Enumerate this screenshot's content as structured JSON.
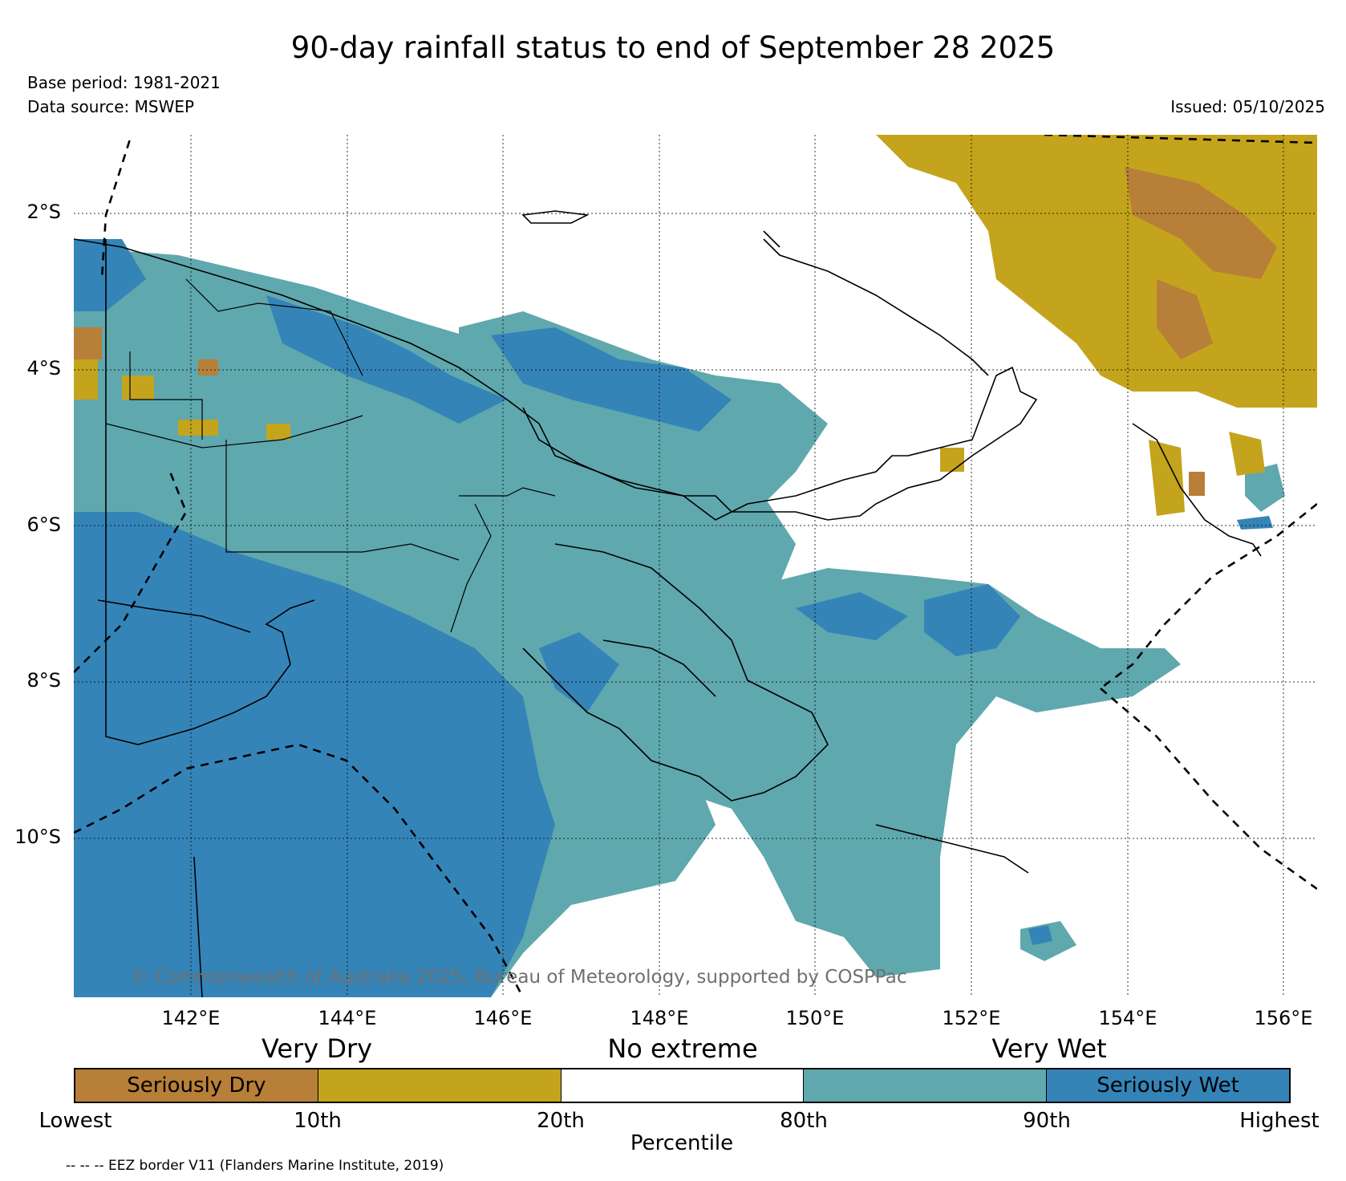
{
  "title": "90-day rainfall status to end of September 28 2025",
  "base_period": "Base period: 1981-2021",
  "data_source": "Data source: MSWEP",
  "issued": "Issued: 05/10/2025",
  "copyright": "© Commonwealth of Australia 2025, Bureau of Meteorology, supported by COSPPac",
  "lat_labels": [
    "2°S",
    "4°S",
    "6°S",
    "8°S",
    "10°S"
  ],
  "lon_labels": [
    "142°E",
    "144°E",
    "146°E",
    "148°E",
    "150°E",
    "152°E",
    "154°E",
    "156°E"
  ],
  "category_labels": {
    "dry": "Very Dry",
    "none": "No extreme",
    "wet": "Very Wet"
  },
  "legend": [
    {
      "label": "Seriously Dry",
      "color": "#b87f38"
    },
    {
      "label": "",
      "color": "#c4a41c"
    },
    {
      "label": "",
      "color": "#ffffff"
    },
    {
      "label": "",
      "color": "#5fa8ae"
    },
    {
      "label": "Seriously Wet",
      "color": "#3584b8"
    }
  ],
  "legend_ticks": [
    "Lowest",
    "10th",
    "20th",
    "80th",
    "90th",
    "Highest"
  ],
  "percentile_label": "Percentile",
  "eez_note": "-- -- -- EEZ border V11 (Flanders Marine Institute, 2019)"
}
